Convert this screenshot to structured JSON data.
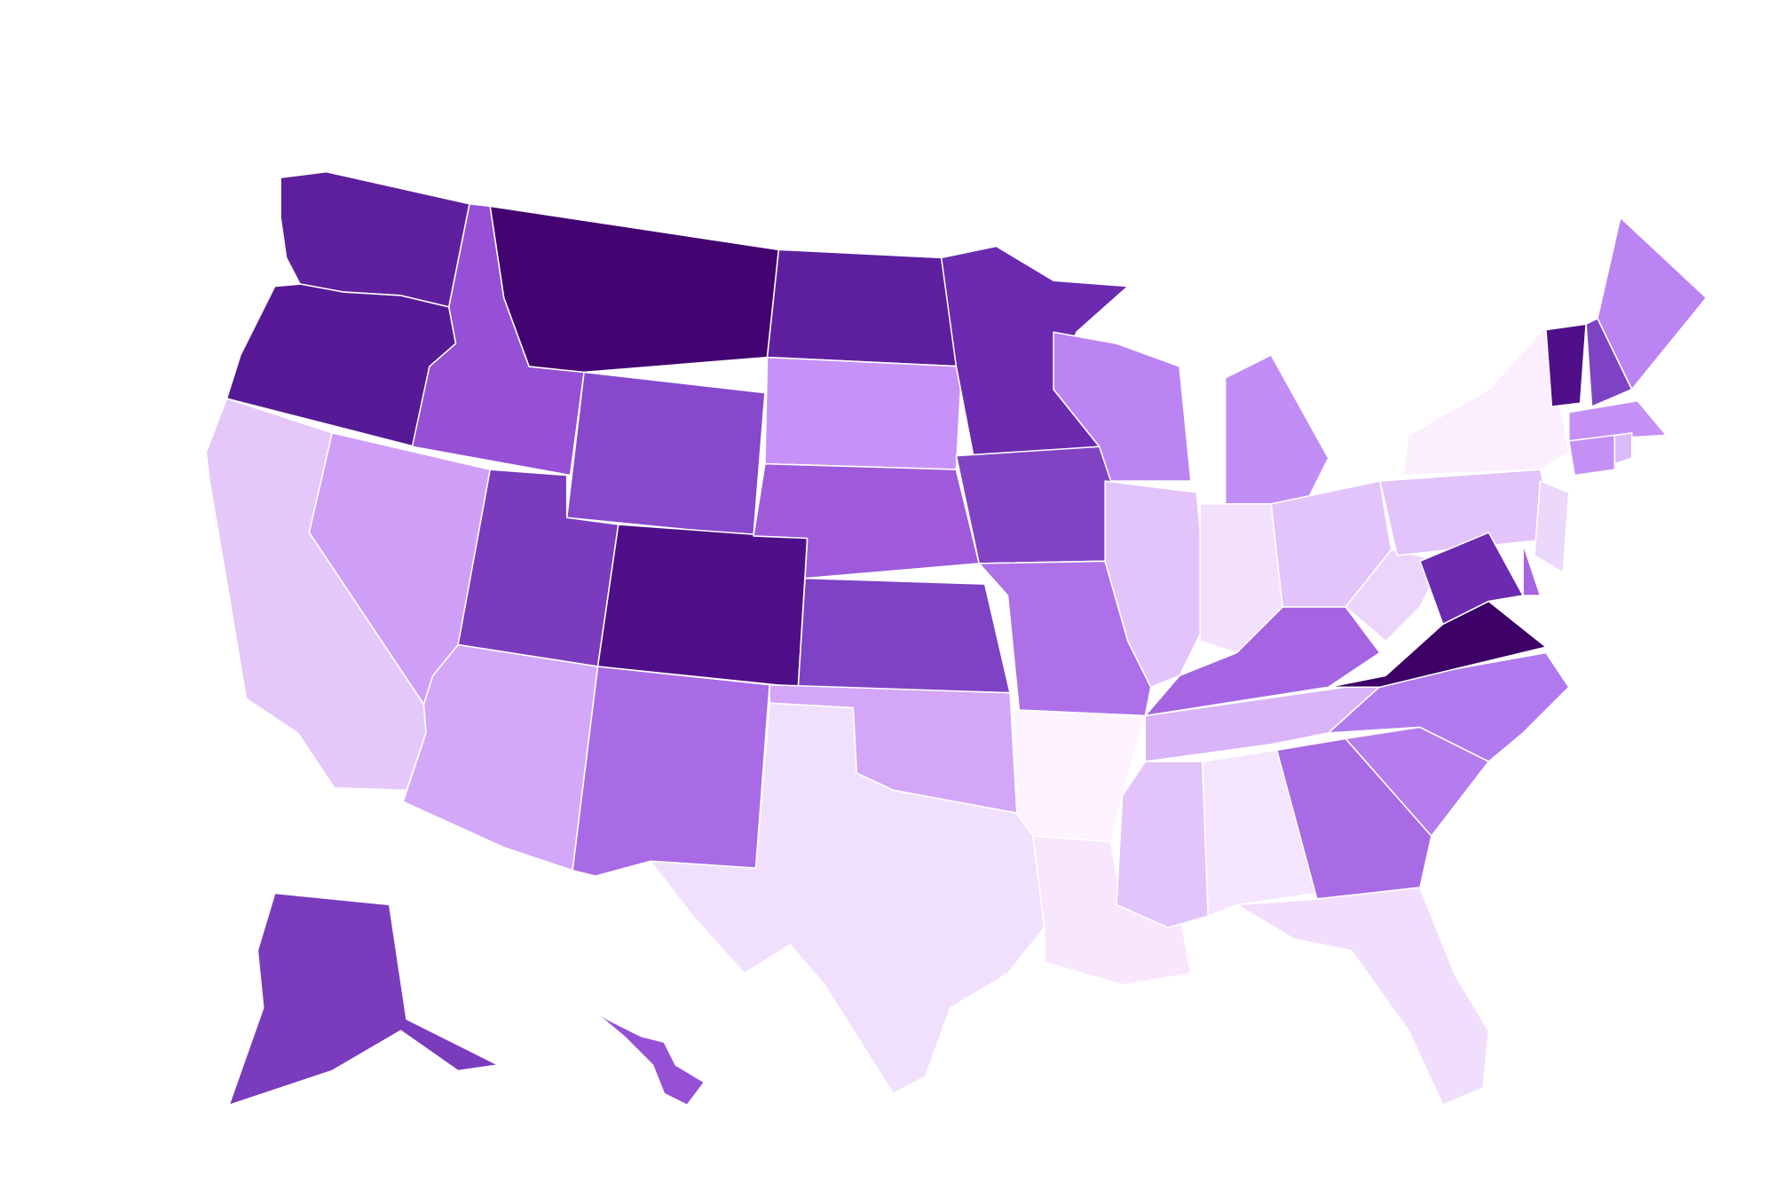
{
  "map": {
    "regions": [
      {
        "color": "#5e1f9e"
      },
      {
        "color": "#571a96"
      },
      {
        "color": "#e5c8fa"
      },
      {
        "color": "#cf9ff8"
      },
      {
        "color": "#9550d6"
      },
      {
        "color": "#430371"
      },
      {
        "color": "#8748cc"
      },
      {
        "color": "#7b3bbd"
      },
      {
        "color": "#4f0f88"
      },
      {
        "color": "#d3a8f8"
      },
      {
        "color": "#a96ae6"
      },
      {
        "color": "#5e1f9e"
      },
      {
        "color": "#c792f8"
      },
      {
        "color": "#9e5adb"
      },
      {
        "color": "#7e42c4"
      },
      {
        "color": "#d3a6f8"
      },
      {
        "color": "#f1e0fd"
      },
      {
        "color": "#6b2ab0"
      },
      {
        "color": "#8143c4"
      },
      {
        "color": "#ad70e8"
      },
      {
        "color": "#fdf3fe"
      },
      {
        "color": "#f8e6fd"
      },
      {
        "color": "#ba84f2"
      },
      {
        "color": "#e3c4fa"
      },
      {
        "color": "#c18ef6"
      },
      {
        "color": "#f2e0fd"
      },
      {
        "color": "#e3c4fa"
      },
      {
        "color": "#a565e2"
      },
      {
        "color": "#d9b4f8"
      },
      {
        "color": "#e3c4fa"
      },
      {
        "color": "#f4e4fd"
      },
      {
        "color": "#a96ae6"
      },
      {
        "color": "#f1defd"
      },
      {
        "color": "#b57ced"
      },
      {
        "color": "#b07aee"
      },
      {
        "color": "#3c0067"
      },
      {
        "color": "#ebd5fb"
      },
      {
        "color": "#e3c4fa"
      },
      {
        "color": "#fbeefe"
      },
      {
        "color": "#ecd8fb"
      },
      {
        "color": "#6b2ab0"
      },
      {
        "color": "#a565e2"
      },
      {
        "color": "#4f0f88"
      },
      {
        "color": "#7e42c4"
      },
      {
        "color": "#ba84f2"
      },
      {
        "color": "#c490f6"
      },
      {
        "color": "#c490f6"
      },
      {
        "color": "#dcbcf8"
      },
      {
        "color": "#7b3bbd"
      },
      {
        "color": "#9550d6"
      }
    ]
  }
}
